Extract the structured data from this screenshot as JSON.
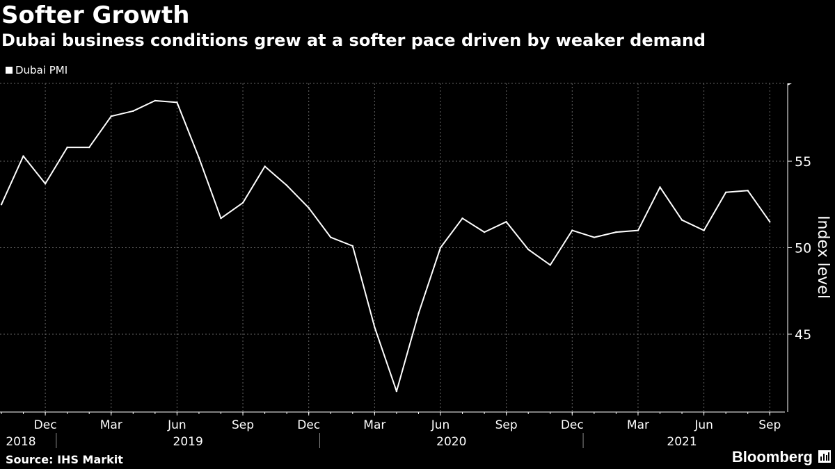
{
  "header": {
    "title": "Softer Growth",
    "subtitle": "Dubai business conditions grew at a softer pace driven by weaker demand"
  },
  "legend": {
    "label": "Dubai PMI",
    "color": "#ffffff"
  },
  "footer": {
    "source": "Source: IHS Markit",
    "brand": "Bloomberg",
    "brand_icon": "bloomberg-logo-icon"
  },
  "colors": {
    "background": "#000000",
    "line": "#ffffff",
    "grid": "#666666"
  },
  "chart_data": {
    "type": "line",
    "ylabel": "Index level",
    "ylim": [
      40.5,
      59.5
    ],
    "yticks": [
      45,
      50,
      55
    ],
    "grid": true,
    "legend_position": "top-left",
    "x_month_labels": [
      "Dec",
      "Mar",
      "Jun",
      "Sep",
      "Dec",
      "Mar",
      "Jun",
      "Sep",
      "Dec",
      "Mar",
      "Jun",
      "Sep"
    ],
    "x_year_labels": [
      "2018",
      "2019",
      "2020",
      "2021"
    ],
    "x": [
      "2018-10",
      "2018-11",
      "2018-12",
      "2019-01",
      "2019-02",
      "2019-03",
      "2019-04",
      "2019-05",
      "2019-06",
      "2019-07",
      "2019-08",
      "2019-09",
      "2019-10",
      "2019-11",
      "2019-12",
      "2020-01",
      "2020-02",
      "2020-03",
      "2020-04",
      "2020-05",
      "2020-06",
      "2020-07",
      "2020-08",
      "2020-09",
      "2020-10",
      "2020-11",
      "2020-12",
      "2021-01",
      "2021-02",
      "2021-03",
      "2021-04",
      "2021-05",
      "2021-06",
      "2021-07",
      "2021-08",
      "2021-09"
    ],
    "series": [
      {
        "name": "Dubai PMI",
        "values": [
          52.5,
          55.3,
          53.7,
          55.8,
          55.8,
          57.6,
          57.9,
          58.5,
          58.4,
          55.2,
          51.7,
          52.6,
          54.7,
          53.6,
          52.3,
          50.6,
          50.1,
          45.4,
          41.7,
          46.2,
          50.0,
          51.7,
          50.9,
          51.5,
          49.9,
          49.0,
          51.0,
          50.6,
          50.9,
          51.0,
          53.5,
          51.6,
          51.0,
          53.2,
          53.3,
          51.5
        ]
      }
    ]
  }
}
